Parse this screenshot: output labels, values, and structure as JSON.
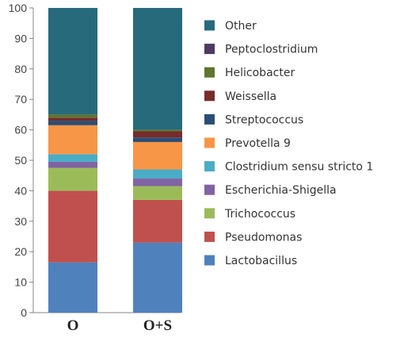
{
  "chart_data": {
    "type": "bar",
    "stacked": true,
    "title": "",
    "xlabel": "",
    "ylabel": "",
    "ylim": [
      0,
      100
    ],
    "yticks": [
      0,
      10,
      20,
      30,
      40,
      50,
      60,
      70,
      80,
      90,
      100
    ],
    "categories": [
      "O",
      "O+S"
    ],
    "grid": false,
    "legend_position": "right",
    "series": [
      {
        "name": "Lactobacillus",
        "color": "#4f81bd",
        "values": [
          16.5,
          23.0
        ]
      },
      {
        "name": "Pseudomonas",
        "color": "#c0504d",
        "values": [
          23.5,
          14.0
        ]
      },
      {
        "name": "Trichococcus",
        "color": "#9bbb59",
        "values": [
          7.5,
          4.5
        ]
      },
      {
        "name": "Escherichia-Shigella",
        "color": "#8064a2",
        "values": [
          2.0,
          2.5
        ]
      },
      {
        "name": "Clostridium sensu stricto 1",
        "color": "#4bacc6",
        "values": [
          2.5,
          3.0
        ]
      },
      {
        "name": "Prevotella 9",
        "color": "#f79646",
        "values": [
          9.5,
          9.0
        ]
      },
      {
        "name": "Streptococcus",
        "color": "#2c4d75",
        "values": [
          1.5,
          1.5
        ]
      },
      {
        "name": "Weissella",
        "color": "#772c2a",
        "values": [
          1.0,
          2.0
        ]
      },
      {
        "name": "Helicobacter",
        "color": "#5f7530",
        "values": [
          1.0,
          0.5
        ]
      },
      {
        "name": "Peptoclostridium",
        "color": "#4d3b62",
        "values": [
          0.0,
          0.0
        ]
      },
      {
        "name": "Other",
        "color": "#276a7c",
        "values": [
          35.0,
          40.0
        ]
      }
    ]
  }
}
